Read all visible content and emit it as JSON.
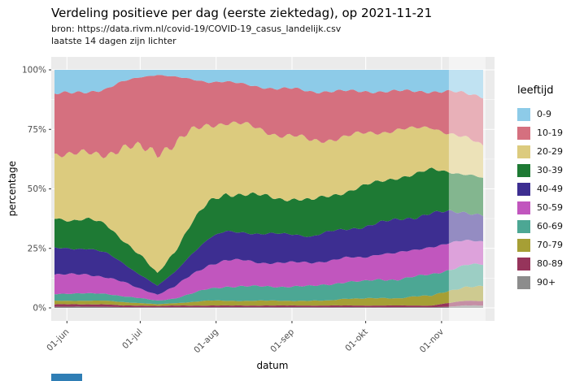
{
  "chart_data": {
    "type": "area",
    "stacked": true,
    "percent": true,
    "title": "Verdeling positieve per dag (eerste ziektedag), op 2021-11-21",
    "subtitle": "bron: https://data.rivm.nl/covid-19/COVID-19_casus_landelijk.csv",
    "note": "laatste 14 dagen zijn lichter",
    "xlabel": "datum",
    "ylabel": "percentage",
    "legend_title": "leeftijd",
    "ylim": [
      0,
      100
    ],
    "grid": true,
    "legend_position": "right",
    "lighter_last_days": 14,
    "x_range_days": 175,
    "x": [
      "27-mei",
      "03-jun",
      "10-jun",
      "17-jun",
      "24-jun",
      "01-jul",
      "08-jul",
      "15-jul",
      "22-jul",
      "29-jul",
      "05-aug",
      "12-aug",
      "19-aug",
      "26-aug",
      "02-sep",
      "09-sep",
      "16-sep",
      "23-sep",
      "30-sep",
      "07-okt",
      "14-okt",
      "21-okt",
      "28-okt",
      "04-nov",
      "11-nov",
      "18-nov"
    ],
    "x_ticks": [
      {
        "label": "01-jun",
        "f": 0.029
      },
      {
        "label": "01-jul",
        "f": 0.2
      },
      {
        "label": "01-aug",
        "f": 0.377
      },
      {
        "label": "01-sep",
        "f": 0.554
      },
      {
        "label": "01-okt",
        "f": 0.726
      },
      {
        "label": "01-nov",
        "f": 0.903
      }
    ],
    "y_ticks": [
      {
        "label": "0%",
        "value": 0
      },
      {
        "label": "25%",
        "value": 25
      },
      {
        "label": "50%",
        "value": 50
      },
      {
        "label": "75%",
        "value": 75
      },
      {
        "label": "100%",
        "value": 100
      }
    ],
    "panel_background": "#EBEBEB",
    "series": [
      {
        "name": "0-9",
        "color": "#8DCBE8",
        "values": [
          10,
          10,
          9,
          8,
          5,
          3,
          2,
          3,
          4,
          5,
          5,
          6,
          7,
          8,
          8,
          9,
          9,
          9,
          9,
          9,
          9,
          9,
          9,
          9,
          10,
          11
        ]
      },
      {
        "name": "10-19",
        "color": "#D5707F",
        "values": [
          25,
          26,
          26,
          27,
          28,
          30,
          32,
          28,
          22,
          18,
          17,
          17,
          18,
          19,
          20,
          21,
          20,
          19,
          18,
          17,
          16,
          16,
          15,
          17,
          19,
          21
        ]
      },
      {
        "name": "20-29",
        "color": "#DCCB7E",
        "values": [
          27,
          27,
          28,
          30,
          38,
          45,
          52,
          45,
          38,
          33,
          30,
          29,
          28,
          27,
          26,
          25,
          24,
          23,
          22,
          21,
          20,
          19,
          18,
          16,
          15,
          14
        ]
      },
      {
        "name": "30-39",
        "color": "#1E7A34",
        "values": [
          13,
          12,
          12,
          12,
          10,
          8,
          5,
          9,
          13,
          15,
          16,
          16,
          16,
          15,
          15,
          15,
          15,
          16,
          17,
          17,
          18,
          18,
          18,
          17,
          16,
          15
        ]
      },
      {
        "name": "40-49",
        "color": "#3D2E91",
        "values": [
          11,
          11,
          11,
          10,
          8,
          6,
          3.5,
          6,
          9,
          11,
          12,
          12,
          12,
          12,
          12,
          11,
          12,
          12,
          13,
          13,
          14,
          14,
          14,
          13,
          12,
          11
        ]
      },
      {
        "name": "50-59",
        "color": "#C156BE",
        "values": [
          8,
          8,
          8,
          7,
          6,
          4,
          2.5,
          5,
          8,
          10,
          11,
          11,
          10,
          10,
          10,
          10,
          10,
          10,
          10,
          11,
          11,
          11,
          12,
          11,
          10,
          10
        ]
      },
      {
        "name": "60-69",
        "color": "#4CA794",
        "values": [
          3,
          3,
          3,
          3,
          2.5,
          2,
          1.5,
          2,
          3.5,
          5,
          6,
          6,
          6,
          6,
          6,
          6,
          7,
          7,
          7,
          8,
          8,
          8,
          9,
          9,
          9,
          9
        ]
      },
      {
        "name": "70-79",
        "color": "#A69F35",
        "values": [
          1.5,
          1.5,
          1.5,
          1.5,
          1.5,
          1,
          0.7,
          1,
          1.5,
          2,
          2,
          2,
          2,
          2,
          2,
          2,
          2,
          3,
          3,
          3,
          3,
          4,
          4,
          5,
          6,
          6
        ]
      },
      {
        "name": "80-89",
        "color": "#96345B",
        "values": [
          1,
          1,
          1,
          1,
          0.7,
          0.7,
          0.5,
          0.7,
          0.7,
          0.7,
          0.7,
          0.7,
          0.7,
          0.7,
          0.7,
          0.7,
          0.7,
          0.7,
          0.7,
          0.7,
          0.7,
          0.7,
          0.7,
          1.5,
          2,
          2
        ]
      },
      {
        "name": "90+",
        "color": "#8C8C8C",
        "values": [
          0.5,
          0.5,
          0.5,
          0.5,
          0.3,
          0.3,
          0.3,
          0.3,
          0.3,
          0.3,
          0.3,
          0.3,
          0.3,
          0.3,
          0.3,
          0.3,
          0.3,
          0.3,
          0.3,
          0.3,
          0.3,
          0.3,
          0.3,
          0.5,
          1,
          1
        ]
      }
    ]
  }
}
